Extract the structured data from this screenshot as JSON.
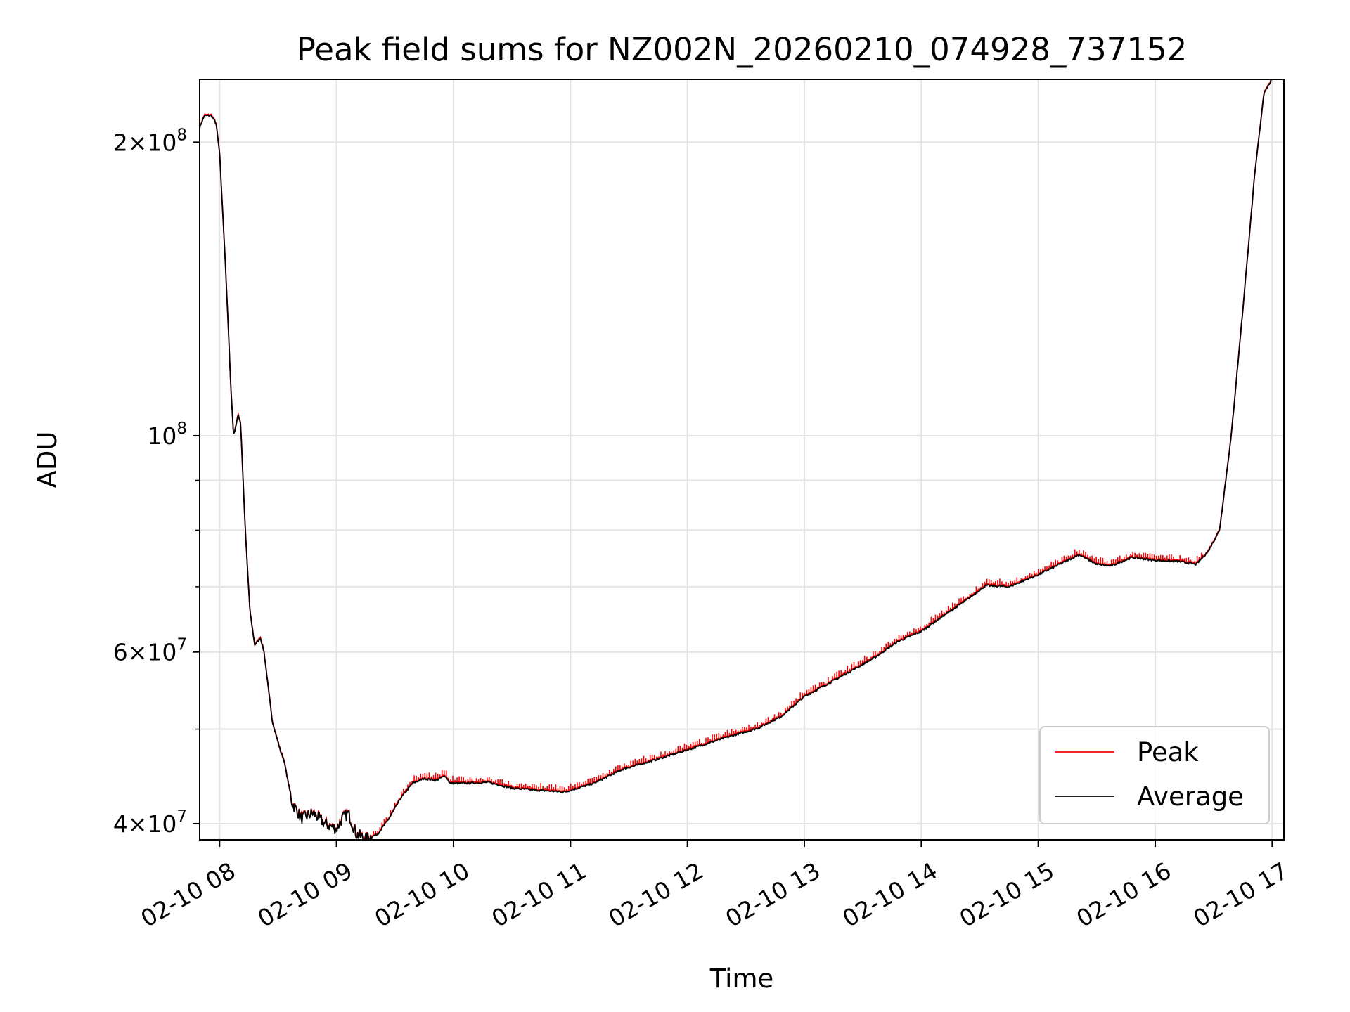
{
  "chart_data": {
    "type": "line",
    "title": "Peak field sums for NZ002N_20260210_074928_737152",
    "xlabel": "Time",
    "ylabel": "ADU",
    "yscale": "log",
    "ylim": [
      38500000,
      232000000
    ],
    "xlim": [
      7.83,
      17.1
    ],
    "grid": true,
    "legend_position": "lower-right",
    "colors": {
      "peak": "#ff0000",
      "average": "#000000",
      "grid": "#e4e4e4"
    },
    "xticks": [
      {
        "value": 8,
        "label": "02-10 08"
      },
      {
        "value": 9,
        "label": "02-10 09"
      },
      {
        "value": 10,
        "label": "02-10 10"
      },
      {
        "value": 11,
        "label": "02-10 11"
      },
      {
        "value": 12,
        "label": "02-10 12"
      },
      {
        "value": 13,
        "label": "02-10 13"
      },
      {
        "value": 14,
        "label": "02-10 14"
      },
      {
        "value": 15,
        "label": "02-10 15"
      },
      {
        "value": 16,
        "label": "02-10 16"
      },
      {
        "value": 17,
        "label": "02-10 17"
      }
    ],
    "yticks_major": [
      {
        "value": 40000000,
        "base": "4×10",
        "exp": "7"
      },
      {
        "value": 60000000,
        "base": "6×10",
        "exp": "7"
      },
      {
        "value": 100000000,
        "base": "10",
        "exp": "8"
      },
      {
        "value": 200000000,
        "base": "2×10",
        "exp": "8"
      }
    ],
    "yticks_minor": [
      50000000,
      70000000,
      80000000,
      90000000
    ],
    "series": [
      {
        "name": "Peak",
        "color": "#ff0000",
        "spike_fraction": 0.012
      },
      {
        "name": "Average",
        "color": "#000000"
      }
    ],
    "average_points": [
      [
        7.83,
        207000000
      ],
      [
        7.87,
        213000000
      ],
      [
        7.93,
        213000000
      ],
      [
        7.97,
        209000000
      ],
      [
        8.0,
        195000000
      ],
      [
        8.05,
        150000000
      ],
      [
        8.1,
        110000000
      ],
      [
        8.12,
        100000000
      ],
      [
        8.16,
        105000000
      ],
      [
        8.18,
        103000000
      ],
      [
        8.22,
        80000000
      ],
      [
        8.26,
        66000000
      ],
      [
        8.3,
        61000000
      ],
      [
        8.35,
        62000000
      ],
      [
        8.38,
        60000000
      ],
      [
        8.45,
        51000000
      ],
      [
        8.52,
        47500000
      ],
      [
        8.55,
        46500000
      ],
      [
        8.62,
        42000000
      ],
      [
        8.7,
        40500000
      ],
      [
        8.8,
        41000000
      ],
      [
        8.9,
        40000000
      ],
      [
        9.0,
        39500000
      ],
      [
        9.05,
        40500000
      ],
      [
        9.1,
        41000000
      ],
      [
        9.17,
        39000000
      ],
      [
        9.25,
        38600000
      ],
      [
        9.35,
        39000000
      ],
      [
        9.45,
        40500000
      ],
      [
        9.55,
        42500000
      ],
      [
        9.65,
        44000000
      ],
      [
        9.75,
        44500000
      ],
      [
        9.85,
        44300000
      ],
      [
        9.93,
        44800000
      ],
      [
        9.97,
        44000000
      ],
      [
        10.1,
        44000000
      ],
      [
        10.3,
        44100000
      ],
      [
        10.5,
        43500000
      ],
      [
        10.7,
        43300000
      ],
      [
        10.95,
        43100000
      ],
      [
        11.2,
        44000000
      ],
      [
        11.45,
        45500000
      ],
      [
        11.7,
        46400000
      ],
      [
        12.0,
        47600000
      ],
      [
        12.3,
        48900000
      ],
      [
        12.6,
        50100000
      ],
      [
        12.8,
        51500000
      ],
      [
        13.0,
        54000000
      ],
      [
        13.3,
        56500000
      ],
      [
        13.6,
        59200000
      ],
      [
        13.8,
        61500000
      ],
      [
        14.0,
        63000000
      ],
      [
        14.2,
        65500000
      ],
      [
        14.4,
        68000000
      ],
      [
        14.55,
        70200000
      ],
      [
        14.75,
        70000000
      ],
      [
        15.0,
        72000000
      ],
      [
        15.2,
        74000000
      ],
      [
        15.35,
        75500000
      ],
      [
        15.5,
        73800000
      ],
      [
        15.62,
        73500000
      ],
      [
        15.8,
        75000000
      ],
      [
        16.0,
        74500000
      ],
      [
        16.2,
        74300000
      ],
      [
        16.35,
        73800000
      ],
      [
        16.45,
        76000000
      ],
      [
        16.55,
        80000000
      ],
      [
        16.65,
        100000000
      ],
      [
        16.75,
        135000000
      ],
      [
        16.85,
        185000000
      ],
      [
        16.93,
        225000000
      ],
      [
        17.0,
        232000000
      ]
    ]
  },
  "legend": [
    {
      "label": "Peak",
      "color": "#ff0000"
    },
    {
      "label": "Average",
      "color": "#000000"
    }
  ]
}
